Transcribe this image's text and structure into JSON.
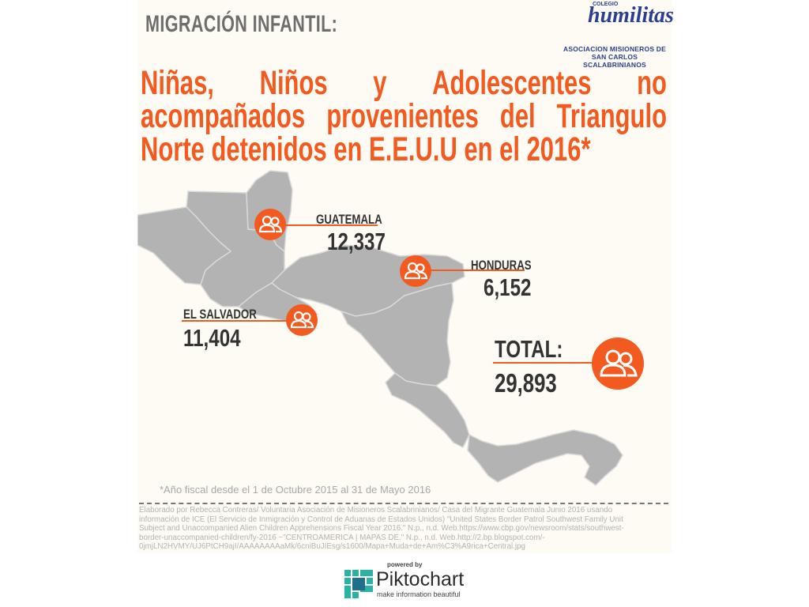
{
  "header": {
    "kicker": "MIGRACIÓN INFANTIL:",
    "logo": {
      "crown_text": "COLEGIO",
      "word": "humilitas",
      "sub_line1": "ASOCIACION MISIONEROS DE",
      "sub_line2": "SAN CARLOS SCALABRINIANOS"
    },
    "title_lines": [
      "Niñas, Niños y Adolescentes no",
      "acompañados provenientes del Triangulo",
      "Norte detenidos en E.E.U.U en el 2016*"
    ],
    "title_line1_words": [
      "Niñas,",
      "Niños",
      "y",
      "Adolescentes",
      "no"
    ],
    "title_line2_words": [
      "acompañados",
      "provenientes",
      "del",
      "Triangulo"
    ]
  },
  "stats": [
    {
      "country": "GUATEMALA",
      "value": "12,337"
    },
    {
      "country": "HONDURAS",
      "value": "6,152"
    },
    {
      "country": "EL SALVADOR",
      "value": "11,404"
    }
  ],
  "total": {
    "label": "TOTAL:",
    "value": "29,893"
  },
  "footnote": "*Año fiscal desde el 1 de Octubre 2015 al 31 de Mayo 2016",
  "sources": [
    "Elaborado por Rebecca Contreras/ Voluntaria Asociación de Misioneros Scalabrinianos/ Casa del Migrante Guatemala Junio 2016 usando",
    "información de ICE (El Servicio de Inmigración y Control de Aduanas de Estados Unidos) \"United States Border Patrol Southwest Family Unit",
    "Subject and Unaccompanied Alien Children Apprehensions Fiscal Year 2016.\" N.p., n.d. Web.https://www.cbp.gov/newsroom/stats/southwest-",
    "border-unaccompanied-children/fy-2016 ~\"CENTROAMERICA | MAPAS DE.\" N.p., n.d. Web.http://2.bp.blogspot.com/-",
    "0jmjLN2HVMY/UJ6PtCH9ajI/AAAAAAAAaMk/6cniBuJIEsg/s1600/Mapa+Muda+de+Am%C3%A9rica+Central.jpg"
  ],
  "branding": {
    "powered_by": "powered by",
    "name": "Piktochart",
    "tagline": "make information beautiful"
  },
  "colors": {
    "accent": "#f25a1f",
    "map_fill": "#b3b3b3",
    "text_dark": "#333333",
    "panel_bg": "#fdfbf4"
  },
  "icons": {
    "marker": "people-icon",
    "brand": "piktochart-logo-icon"
  }
}
